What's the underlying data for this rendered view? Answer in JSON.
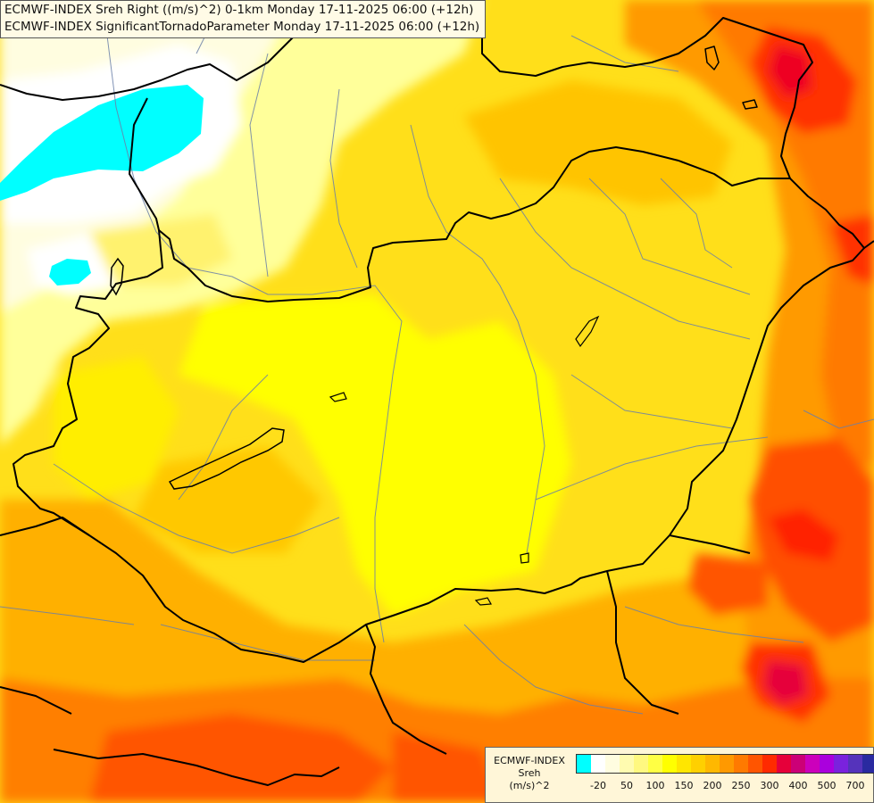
{
  "title": {
    "line1": "ECMWF-INDEX Sreh Right ((m/s)^2) 0-1km Monday 17-11-2025 06:00 (+12h)",
    "line2": "ECMWF-INDEX SignificantTornadoParameter Monday 17-11-2025 06:00 (+12h)"
  },
  "legend": {
    "line1": "ECMWF-INDEX",
    "line2": "Sreh",
    "line3": "(m/s)^2",
    "colors": [
      "#00ffff",
      "#ffffff",
      "#fffde0",
      "#fffbb0",
      "#fff880",
      "#ffff44",
      "#ffff00",
      "#ffe600",
      "#ffd000",
      "#ffb800",
      "#ff9900",
      "#ff7a00",
      "#ff5500",
      "#ff2a00",
      "#e6003a",
      "#cc0077",
      "#cc00bb",
      "#aa00dd",
      "#7a22dd",
      "#5533bb",
      "#2a2aa0",
      "#000080"
    ],
    "ticks": [
      {
        "label": "-20",
        "idx": 1
      },
      {
        "label": "50",
        "idx": 3
      },
      {
        "label": "100",
        "idx": 5
      },
      {
        "label": "150",
        "idx": 7
      },
      {
        "label": "200",
        "idx": 9
      },
      {
        "label": "250",
        "idx": 11
      },
      {
        "label": "300",
        "idx": 13
      },
      {
        "label": "400",
        "idx": 15
      },
      {
        "label": "500",
        "idx": 17
      },
      {
        "label": "700",
        "idx": 19
      }
    ]
  }
}
